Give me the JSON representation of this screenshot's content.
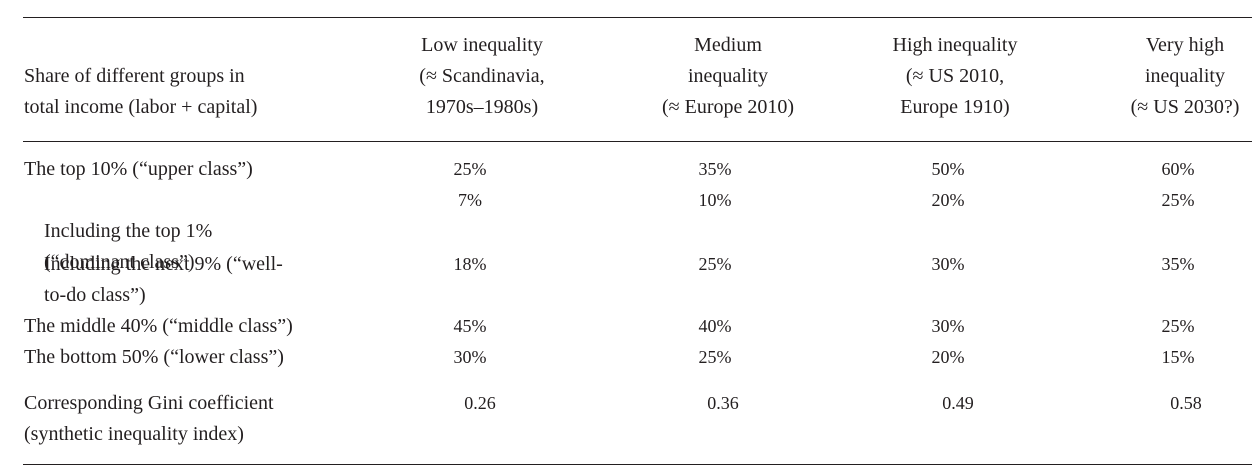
{
  "table": {
    "row_header": "Share of different groups in\ntotal income (labor + capital)",
    "columns": [
      "Low inequality\n(≈ Scandinavia,\n1970s–1980s)",
      "Medium\ninequality\n(≈ Europe 2010)",
      "High inequality\n(≈ US 2010,\nEurope 1910)",
      "Very high\ninequality\n(≈ US 2030?)"
    ],
    "rows": [
      {
        "label": "The top 10% (“upper class”)",
        "values": [
          "25%",
          "35%",
          "50%",
          "60%"
        ]
      },
      {
        "label": "Including the top 1%\n(“dominant class”)",
        "values": [
          "7%",
          "10%",
          "20%",
          "25%"
        ]
      },
      {
        "label": "Including the next 9% (“well-\nto-do class”)",
        "values": [
          "18%",
          "25%",
          "30%",
          "35%"
        ]
      },
      {
        "label": "The middle 40% (“middle class”)",
        "values": [
          "45%",
          "40%",
          "30%",
          "25%"
        ]
      },
      {
        "label": "The bottom 50% (“lower class”)",
        "values": [
          "30%",
          "25%",
          "20%",
          "15%"
        ]
      },
      {
        "label": "Corresponding Gini coefficient\n(synthetic inequality index)",
        "values": [
          "0.26",
          "0.36",
          "0.49",
          "0.58"
        ]
      }
    ]
  }
}
